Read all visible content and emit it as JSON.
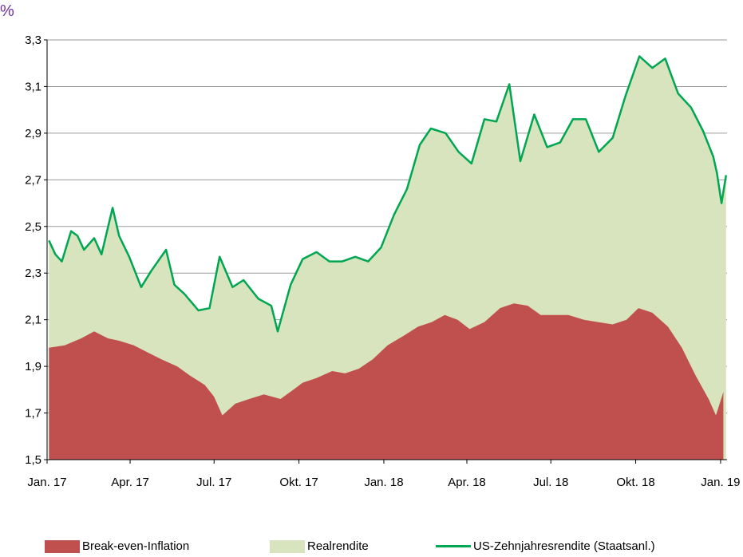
{
  "chart_data": {
    "type": "area",
    "unit_label": "%",
    "ylim": [
      1.5,
      3.3
    ],
    "yticks": [
      "1,5",
      "1,7",
      "1,9",
      "2,1",
      "2,3",
      "2,5",
      "2,7",
      "2,9",
      "3,1",
      "3,3"
    ],
    "ytick_values": [
      1.5,
      1.7,
      1.9,
      2.1,
      2.3,
      2.5,
      2.7,
      2.9,
      3.1,
      3.3
    ],
    "xlim": [
      "2017-01-01",
      "2019-01-08"
    ],
    "xticks": [
      "Jan. 17",
      "Apr. 17",
      "Jul. 17",
      "Okt. 17",
      "Jan. 18",
      "Apr. 18",
      "Jul. 18",
      "Okt. 18",
      "Jan. 19"
    ],
    "xtick_dates": [
      "2017-01-01",
      "2017-04-01",
      "2017-07-01",
      "2017-10-01",
      "2018-01-01",
      "2018-04-01",
      "2018-07-01",
      "2018-10-01",
      "2019-01-01"
    ],
    "grid": "horizontal",
    "legend_position": "bottom",
    "colors": {
      "break_even": "#c0504d",
      "real": "#d7e4bd",
      "nominal": "#00a651",
      "unit": "#7030a0"
    },
    "series": [
      {
        "name": "Break-even-Inflation",
        "style": "area",
        "points": [
          [
            "2017-01-03",
            1.98
          ],
          [
            "2017-01-20",
            1.99
          ],
          [
            "2017-02-07",
            2.02
          ],
          [
            "2017-02-21",
            2.05
          ],
          [
            "2017-03-08",
            2.02
          ],
          [
            "2017-03-20",
            2.01
          ],
          [
            "2017-04-05",
            1.99
          ],
          [
            "2017-04-20",
            1.96
          ],
          [
            "2017-05-05",
            1.93
          ],
          [
            "2017-05-22",
            1.9
          ],
          [
            "2017-06-05",
            1.86
          ],
          [
            "2017-06-21",
            1.82
          ],
          [
            "2017-07-01",
            1.77
          ],
          [
            "2017-07-10",
            1.69
          ],
          [
            "2017-07-24",
            1.74
          ],
          [
            "2017-08-08",
            1.76
          ],
          [
            "2017-08-24",
            1.78
          ],
          [
            "2017-09-11",
            1.76
          ],
          [
            "2017-09-25",
            1.8
          ],
          [
            "2017-10-05",
            1.83
          ],
          [
            "2017-10-20",
            1.85
          ],
          [
            "2017-11-06",
            1.88
          ],
          [
            "2017-11-20",
            1.87
          ],
          [
            "2017-12-05",
            1.89
          ],
          [
            "2017-12-20",
            1.93
          ],
          [
            "2018-01-05",
            1.99
          ],
          [
            "2018-01-22",
            2.03
          ],
          [
            "2018-02-07",
            2.07
          ],
          [
            "2018-02-22",
            2.09
          ],
          [
            "2018-03-08",
            2.12
          ],
          [
            "2018-03-22",
            2.1
          ],
          [
            "2018-04-04",
            2.06
          ],
          [
            "2018-04-20",
            2.09
          ],
          [
            "2018-05-07",
            2.15
          ],
          [
            "2018-05-22",
            2.17
          ],
          [
            "2018-06-06",
            2.16
          ],
          [
            "2018-06-20",
            2.12
          ],
          [
            "2018-07-05",
            2.12
          ],
          [
            "2018-07-20",
            2.12
          ],
          [
            "2018-08-06",
            2.1
          ],
          [
            "2018-08-21",
            2.09
          ],
          [
            "2018-09-06",
            2.08
          ],
          [
            "2018-09-21",
            2.1
          ],
          [
            "2018-10-04",
            2.15
          ],
          [
            "2018-10-19",
            2.13
          ],
          [
            "2018-11-05",
            2.07
          ],
          [
            "2018-11-20",
            1.98
          ],
          [
            "2018-12-05",
            1.86
          ],
          [
            "2018-12-19",
            1.76
          ],
          [
            "2018-12-27",
            1.69
          ],
          [
            "2019-01-04",
            1.79
          ]
        ]
      },
      {
        "name": "Realrendite",
        "style": "area"
      },
      {
        "name": "US-Zehnjahresrendite (Staatsanl.)",
        "style": "line",
        "points": [
          [
            "2017-01-03",
            2.44
          ],
          [
            "2017-01-10",
            2.38
          ],
          [
            "2017-01-17",
            2.35
          ],
          [
            "2017-01-27",
            2.48
          ],
          [
            "2017-02-03",
            2.46
          ],
          [
            "2017-02-10",
            2.4
          ],
          [
            "2017-02-21",
            2.45
          ],
          [
            "2017-03-01",
            2.38
          ],
          [
            "2017-03-13",
            2.58
          ],
          [
            "2017-03-20",
            2.46
          ],
          [
            "2017-03-31",
            2.37
          ],
          [
            "2017-04-13",
            2.24
          ],
          [
            "2017-04-24",
            2.31
          ],
          [
            "2017-05-10",
            2.4
          ],
          [
            "2017-05-19",
            2.25
          ],
          [
            "2017-05-30",
            2.21
          ],
          [
            "2017-06-14",
            2.14
          ],
          [
            "2017-06-26",
            2.15
          ],
          [
            "2017-07-07",
            2.37
          ],
          [
            "2017-07-21",
            2.24
          ],
          [
            "2017-08-02",
            2.27
          ],
          [
            "2017-08-18",
            2.19
          ],
          [
            "2017-09-01",
            2.16
          ],
          [
            "2017-09-08",
            2.05
          ],
          [
            "2017-09-22",
            2.25
          ],
          [
            "2017-10-05",
            2.36
          ],
          [
            "2017-10-20",
            2.39
          ],
          [
            "2017-11-03",
            2.35
          ],
          [
            "2017-11-17",
            2.35
          ],
          [
            "2017-12-01",
            2.37
          ],
          [
            "2017-12-15",
            2.35
          ],
          [
            "2017-12-29",
            2.41
          ],
          [
            "2018-01-12",
            2.55
          ],
          [
            "2018-01-26",
            2.66
          ],
          [
            "2018-02-09",
            2.85
          ],
          [
            "2018-02-21",
            2.92
          ],
          [
            "2018-03-09",
            2.9
          ],
          [
            "2018-03-23",
            2.82
          ],
          [
            "2018-04-06",
            2.77
          ],
          [
            "2018-04-20",
            2.96
          ],
          [
            "2018-05-03",
            2.95
          ],
          [
            "2018-05-17",
            3.11
          ],
          [
            "2018-05-29",
            2.78
          ],
          [
            "2018-06-13",
            2.98
          ],
          [
            "2018-06-27",
            2.84
          ],
          [
            "2018-07-11",
            2.86
          ],
          [
            "2018-07-25",
            2.96
          ],
          [
            "2018-08-08",
            2.96
          ],
          [
            "2018-08-22",
            2.82
          ],
          [
            "2018-09-06",
            2.88
          ],
          [
            "2018-09-20",
            3.06
          ],
          [
            "2018-10-05",
            3.23
          ],
          [
            "2018-10-19",
            3.18
          ],
          [
            "2018-11-02",
            3.22
          ],
          [
            "2018-11-16",
            3.07
          ],
          [
            "2018-11-30",
            3.01
          ],
          [
            "2018-12-13",
            2.91
          ],
          [
            "2018-12-24",
            2.8
          ],
          [
            "2018-12-28",
            2.73
          ],
          [
            "2019-01-02",
            2.6
          ],
          [
            "2019-01-07",
            2.72
          ]
        ]
      }
    ]
  }
}
